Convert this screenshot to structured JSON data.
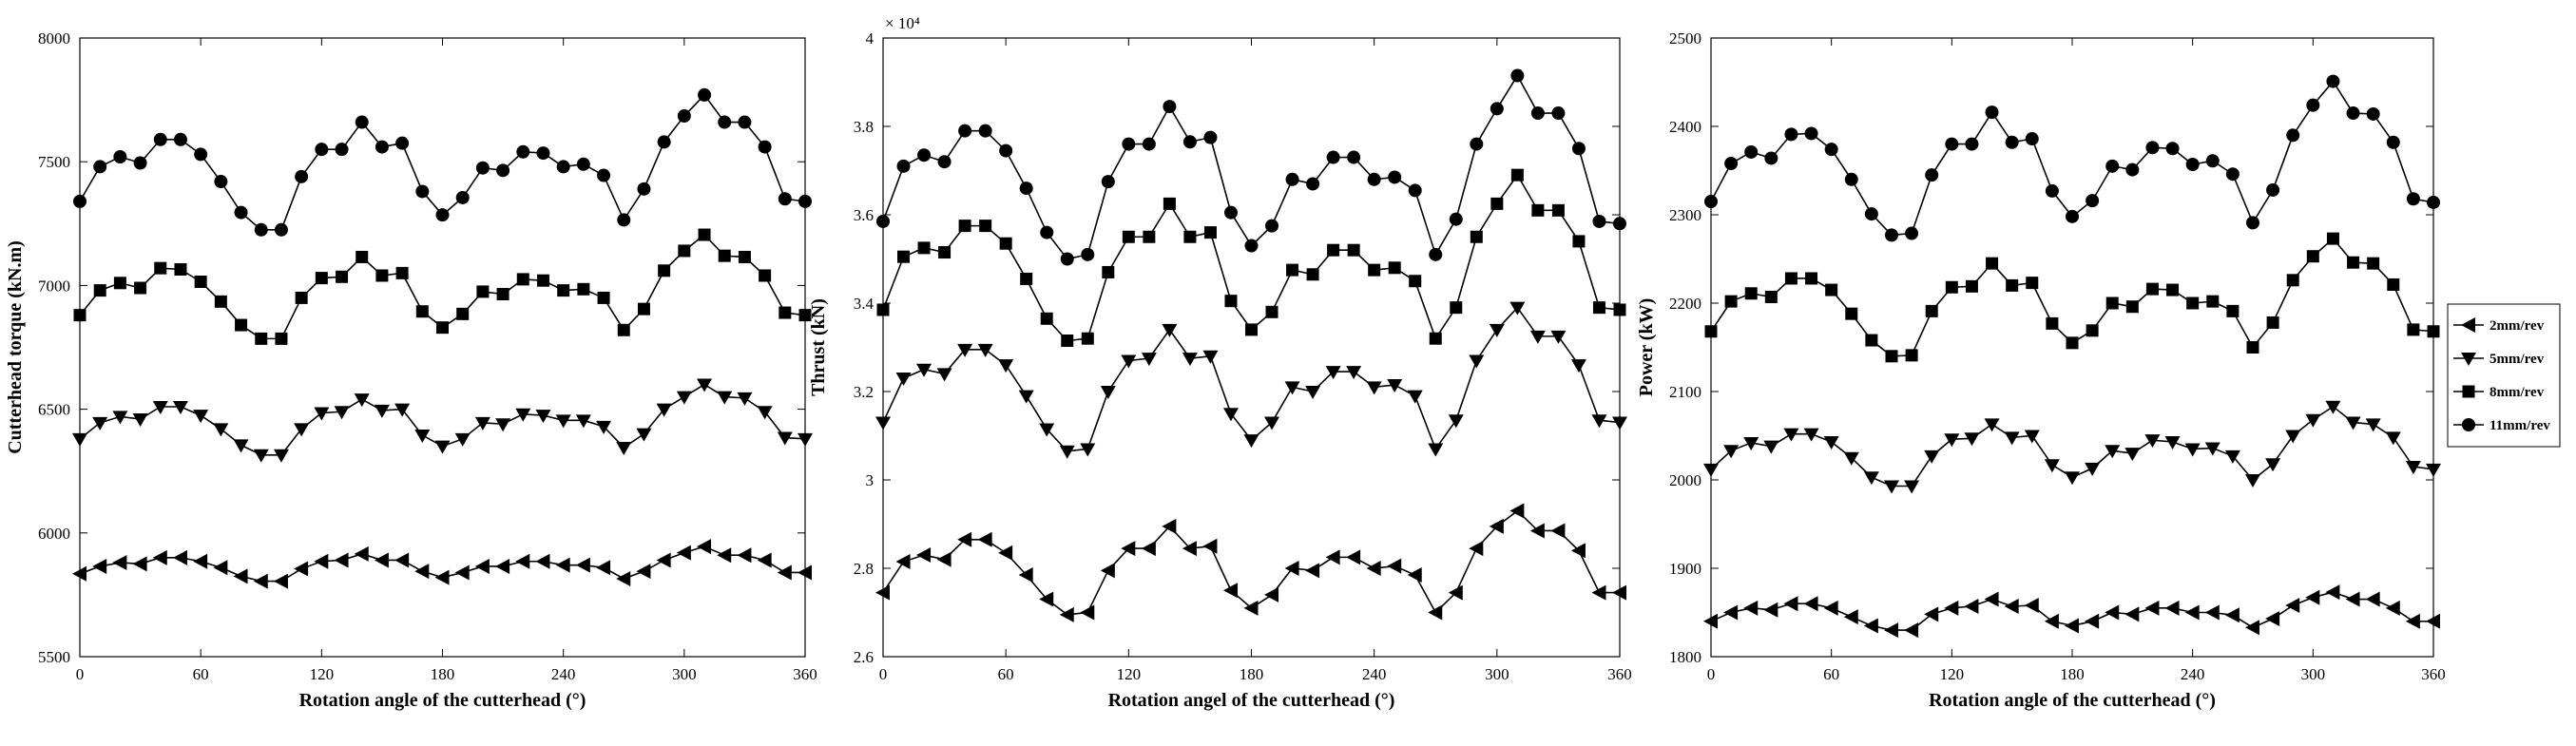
{
  "chart_data": [
    {
      "type": "line",
      "title": "",
      "xlabel": "Rotation angle of the cutterhead (°)",
      "ylabel": "Cutterhead torque (kN.m)",
      "xlim": [
        0,
        360
      ],
      "ylim": [
        5500,
        8000
      ],
      "xticks": [
        0,
        60,
        120,
        180,
        240,
        300,
        360
      ],
      "yticks": [
        5500,
        6000,
        6500,
        7000,
        7500,
        8000
      ],
      "yexponent": "",
      "grid": false,
      "series": [
        {
          "marker": "triangle-left",
          "values": [
            5835,
            5865,
            5880,
            5875,
            5900,
            5900,
            5885,
            5860,
            5825,
            5805,
            5805,
            5855,
            5885,
            5890,
            5915,
            5890,
            5890,
            5845,
            5820,
            5840,
            5865,
            5865,
            5885,
            5885,
            5870,
            5870,
            5860,
            5815,
            5845,
            5890,
            5920,
            5945,
            5910,
            5910,
            5890,
            5840,
            5840
          ]
        },
        {
          "marker": "triangle-down",
          "values": [
            6380,
            6445,
            6470,
            6460,
            6510,
            6510,
            6475,
            6420,
            6355,
            6315,
            6315,
            6420,
            6485,
            6490,
            6540,
            6495,
            6500,
            6395,
            6350,
            6380,
            6445,
            6440,
            6480,
            6475,
            6455,
            6455,
            6430,
            6345,
            6400,
            6500,
            6550,
            6600,
            6550,
            6545,
            6490,
            6385,
            6380
          ]
        },
        {
          "marker": "square",
          "values": [
            6880,
            6980,
            7010,
            6990,
            7070,
            7065,
            7015,
            6935,
            6840,
            6785,
            6785,
            6950,
            7030,
            7035,
            7115,
            7040,
            7050,
            6895,
            6830,
            6885,
            6975,
            6965,
            7025,
            7020,
            6980,
            6985,
            6950,
            6820,
            6905,
            7060,
            7140,
            7205,
            7120,
            7115,
            7040,
            6890,
            6880
          ]
        },
        {
          "marker": "circle",
          "values": [
            7340,
            7480,
            7520,
            7495,
            7590,
            7590,
            7530,
            7420,
            7295,
            7225,
            7225,
            7440,
            7550,
            7550,
            7660,
            7560,
            7575,
            7380,
            7285,
            7355,
            7475,
            7465,
            7540,
            7535,
            7480,
            7490,
            7445,
            7265,
            7390,
            7580,
            7685,
            7770,
            7660,
            7660,
            7560,
            7350,
            7340
          ]
        }
      ]
    },
    {
      "type": "line",
      "title": "",
      "xlabel": "Rotation angel of the cutterhead (°)",
      "ylabel": "Thrust (kN)",
      "xlim": [
        0,
        360
      ],
      "ylim": [
        2.6,
        4.0
      ],
      "xticks": [
        0,
        60,
        120,
        180,
        240,
        300,
        360
      ],
      "yticks": [
        2.6,
        2.8,
        3.0,
        3.2,
        3.4,
        3.6,
        3.8,
        4.0
      ],
      "ytick_labels": [
        "2.6",
        "2.8",
        "3",
        "3.2",
        "3.4",
        "3.6",
        "3.8",
        "4"
      ],
      "yexponent": "× 10⁴",
      "grid": false,
      "series": [
        {
          "marker": "triangle-left",
          "values": [
            2.745,
            2.815,
            2.83,
            2.82,
            2.865,
            2.865,
            2.835,
            2.785,
            2.73,
            2.695,
            2.7,
            2.795,
            2.845,
            2.845,
            2.895,
            2.845,
            2.85,
            2.75,
            2.71,
            2.74,
            2.8,
            2.795,
            2.825,
            2.825,
            2.8,
            2.805,
            2.785,
            2.7,
            2.745,
            2.845,
            2.895,
            2.93,
            2.885,
            2.885,
            2.84,
            2.745,
            2.745
          ]
        },
        {
          "marker": "triangle-down",
          "values": [
            3.13,
            3.23,
            3.25,
            3.24,
            3.295,
            3.295,
            3.26,
            3.19,
            3.115,
            3.065,
            3.07,
            3.2,
            3.27,
            3.275,
            3.34,
            3.275,
            3.28,
            3.15,
            3.09,
            3.13,
            3.21,
            3.2,
            3.245,
            3.245,
            3.21,
            3.215,
            3.19,
            3.07,
            3.135,
            3.27,
            3.34,
            3.39,
            3.325,
            3.325,
            3.26,
            3.135,
            3.13
          ]
        },
        {
          "marker": "square",
          "values": [
            3.385,
            3.505,
            3.525,
            3.515,
            3.575,
            3.575,
            3.535,
            3.455,
            3.365,
            3.315,
            3.32,
            3.47,
            3.55,
            3.55,
            3.625,
            3.55,
            3.56,
            3.405,
            3.34,
            3.38,
            3.475,
            3.465,
            3.52,
            3.52,
            3.475,
            3.48,
            3.45,
            3.32,
            3.39,
            3.55,
            3.625,
            3.69,
            3.61,
            3.61,
            3.54,
            3.39,
            3.385
          ]
        },
        {
          "marker": "circle",
          "values": [
            3.585,
            3.71,
            3.735,
            3.72,
            3.79,
            3.79,
            3.745,
            3.66,
            3.56,
            3.5,
            3.51,
            3.675,
            3.76,
            3.76,
            3.845,
            3.765,
            3.775,
            3.605,
            3.53,
            3.575,
            3.68,
            3.67,
            3.73,
            3.73,
            3.68,
            3.685,
            3.655,
            3.51,
            3.59,
            3.76,
            3.84,
            3.915,
            3.83,
            3.83,
            3.75,
            3.585,
            3.58
          ]
        }
      ]
    },
    {
      "type": "line",
      "title": "",
      "xlabel": "Rotation angle of the cutterhead (°)",
      "ylabel": "Power (kW)",
      "xlim": [
        0,
        360
      ],
      "ylim": [
        1800,
        2500
      ],
      "xticks": [
        0,
        60,
        120,
        180,
        240,
        300,
        360
      ],
      "yticks": [
        1800,
        1900,
        2000,
        2100,
        2200,
        2300,
        2400,
        2500
      ],
      "yexponent": "",
      "grid": false,
      "legend": {
        "position": "outside-right",
        "entries": [
          "2mm/rev",
          "5mm/rev",
          "8mm/rev",
          "11mm/rev"
        ]
      },
      "series": [
        {
          "name": "2mm/rev",
          "marker": "triangle-left",
          "values": [
            1840,
            1850,
            1855,
            1853,
            1860,
            1860,
            1855,
            1845,
            1835,
            1830,
            1830,
            1848,
            1855,
            1857,
            1865,
            1857,
            1858,
            1840,
            1835,
            1840,
            1850,
            1848,
            1855,
            1855,
            1850,
            1850,
            1847,
            1833,
            1843,
            1858,
            1867,
            1873,
            1865,
            1865,
            1855,
            1840,
            1840
          ]
        },
        {
          "name": "5mm/rev",
          "marker": "triangle-down",
          "values": [
            2012,
            2033,
            2042,
            2038,
            2052,
            2052,
            2043,
            2025,
            2003,
            1993,
            1993,
            2027,
            2046,
            2047,
            2063,
            2048,
            2050,
            2017,
            2003,
            2013,
            2033,
            2030,
            2045,
            2043,
            2035,
            2036,
            2027,
            2000,
            2018,
            2050,
            2068,
            2083,
            2065,
            2063,
            2048,
            2015,
            2012
          ]
        },
        {
          "name": "8mm/rev",
          "marker": "square",
          "values": [
            2168,
            2202,
            2211,
            2207,
            2228,
            2228,
            2215,
            2188,
            2158,
            2140,
            2141,
            2191,
            2218,
            2219,
            2245,
            2220,
            2223,
            2177,
            2155,
            2169,
            2200,
            2196,
            2216,
            2215,
            2200,
            2202,
            2191,
            2150,
            2178,
            2226,
            2253,
            2273,
            2246,
            2245,
            2221,
            2170,
            2168
          ]
        },
        {
          "name": "11mm/rev",
          "marker": "circle",
          "values": [
            2315,
            2358,
            2371,
            2364,
            2391,
            2392,
            2374,
            2340,
            2301,
            2277,
            2279,
            2345,
            2380,
            2380,
            2416,
            2382,
            2386,
            2327,
            2298,
            2316,
            2355,
            2351,
            2376,
            2375,
            2357,
            2361,
            2346,
            2291,
            2328,
            2390,
            2424,
            2451,
            2415,
            2414,
            2382,
            2318,
            2314
          ]
        }
      ]
    }
  ]
}
